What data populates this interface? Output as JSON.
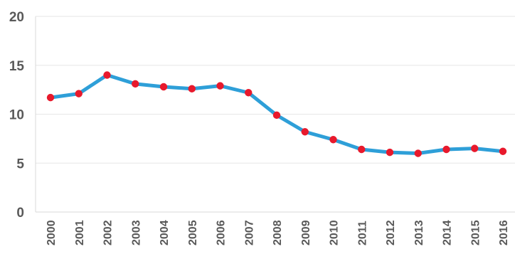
{
  "chart_data": {
    "type": "line",
    "title": "",
    "xlabel": "",
    "ylabel": "",
    "ylim": [
      0,
      20
    ],
    "yticks": [
      0,
      5,
      10,
      15,
      20
    ],
    "grid": true,
    "legend": "none",
    "categories": [
      "2000",
      "2001",
      "2002",
      "2003",
      "2004",
      "2005",
      "2006",
      "2007",
      "2008",
      "2009",
      "2010",
      "2011",
      "2012",
      "2013",
      "2014",
      "2015",
      "2016"
    ],
    "series": [
      {
        "values": [
          11.7,
          12.1,
          14.0,
          13.1,
          12.8,
          12.6,
          12.9,
          12.2,
          9.9,
          8.2,
          7.4,
          6.4,
          6.1,
          6.0,
          6.4,
          6.5,
          6.2
        ],
        "line_color": "#2E9FD8",
        "marker_color": "#E8192C"
      }
    ],
    "colors": {
      "grid": "#E6E6E6",
      "axis": "#D9D9D9",
      "text": "#595959"
    }
  }
}
